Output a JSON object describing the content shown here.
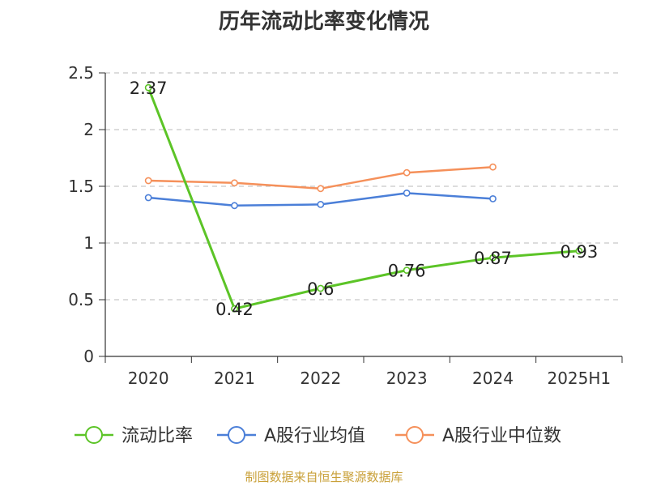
{
  "chart_data": {
    "type": "line",
    "title": "历年流动比率变化情况",
    "categories": [
      "2020",
      "2021",
      "2022",
      "2023",
      "2024",
      "2025H1"
    ],
    "ylim": [
      0,
      2.5
    ],
    "yticks": [
      "0",
      "0.5",
      "1",
      "1.5",
      "2",
      "2.5"
    ],
    "ytick_values": [
      0,
      0.5,
      1,
      1.5,
      2,
      2.5
    ],
    "grid": true,
    "legend_position": "bottom",
    "series": [
      {
        "name": "流动比率",
        "color": "#5cc427",
        "values": [
          2.37,
          0.42,
          0.6,
          0.76,
          0.87,
          0.93
        ],
        "labels": [
          "2.37",
          "0.42",
          "0.6",
          "0.76",
          "0.87",
          "0.93"
        ],
        "show_labels": true,
        "stroke": 3
      },
      {
        "name": "A股行业均值",
        "color": "#4b7fd8",
        "values": [
          1.4,
          1.33,
          1.34,
          1.44,
          1.39,
          null
        ],
        "labels": [],
        "show_labels": false,
        "stroke": 2.5
      },
      {
        "name": "A股行业中位数",
        "color": "#f5905a",
        "values": [
          1.55,
          1.53,
          1.48,
          1.62,
          1.67,
          null
        ],
        "labels": [],
        "show_labels": false,
        "stroke": 2.5
      }
    ]
  },
  "footer": "制图数据来自恒生聚源数据库"
}
